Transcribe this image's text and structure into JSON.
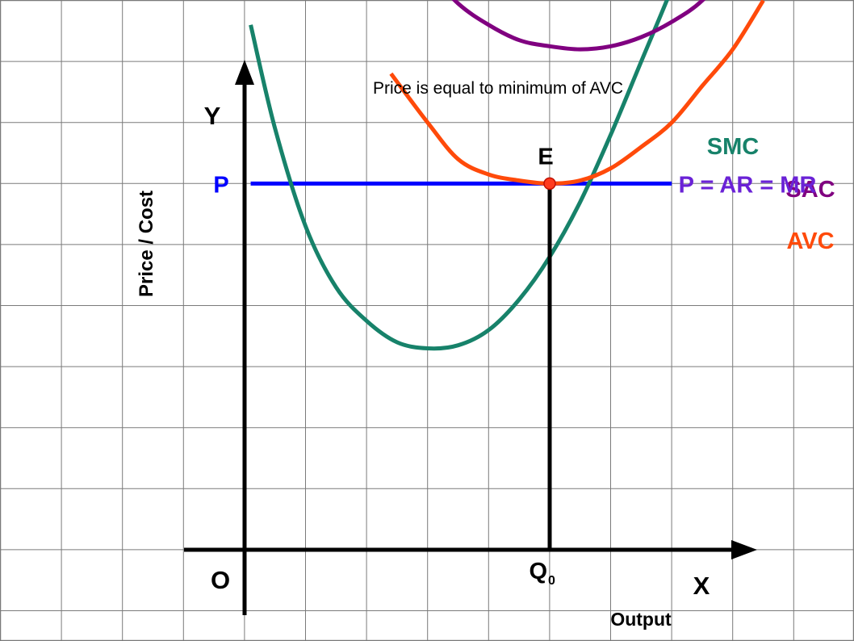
{
  "chart_data": {
    "type": "line",
    "title": "Price is equal to minimum of AVC",
    "ylabel": "Price / Cost",
    "xlabel": "Output",
    "axis_y_name": "Y",
    "axis_x_name": "X",
    "origin_label": "O",
    "grid": true,
    "colors": {
      "grid": "#7a7a7a",
      "axis": "#000000",
      "smc": "#17826a",
      "sac": "#800080",
      "avc": "#ff4a0a",
      "price_line": "#0000ff",
      "price_line_label": "#6a22d6",
      "equilibrium_fill": "#ff3b1f",
      "equilibrium_stroke": "#c01000"
    },
    "series": [
      {
        "name": "SMC",
        "points": [
          [
            0.1,
            8.6
          ],
          [
            0.5,
            6.9
          ],
          [
            1,
            5.3
          ],
          [
            1.5,
            4.3
          ],
          [
            2,
            3.75
          ],
          [
            2.5,
            3.4
          ],
          [
            3,
            3.3
          ],
          [
            3.5,
            3.35
          ],
          [
            4,
            3.6
          ],
          [
            4.5,
            4.1
          ],
          [
            5,
            4.8
          ],
          [
            5.5,
            5.7
          ],
          [
            6,
            6.8
          ],
          [
            6.5,
            8.0
          ],
          [
            7,
            9.2
          ],
          [
            7.5,
            10.5
          ],
          [
            8,
            11.8
          ]
        ]
      },
      {
        "name": "SAC",
        "points": [
          [
            2.4,
            10.2
          ],
          [
            3,
            9.5
          ],
          [
            3.5,
            8.95
          ],
          [
            4,
            8.6
          ],
          [
            4.5,
            8.35
          ],
          [
            5,
            8.25
          ],
          [
            5.5,
            8.2
          ],
          [
            6,
            8.25
          ],
          [
            6.5,
            8.4
          ],
          [
            7,
            8.65
          ],
          [
            7.5,
            9.0
          ],
          [
            8,
            9.6
          ],
          [
            8.6,
            10.4
          ]
        ]
      },
      {
        "name": "AVC",
        "points": [
          [
            2.4,
            7.8
          ],
          [
            3,
            7.0
          ],
          [
            3.5,
            6.4
          ],
          [
            4,
            6.15
          ],
          [
            4.5,
            6.05
          ],
          [
            5,
            6.0
          ],
          [
            5.5,
            6.05
          ],
          [
            6,
            6.25
          ],
          [
            6.5,
            6.6
          ],
          [
            7,
            7.0
          ],
          [
            7.5,
            7.6
          ],
          [
            8,
            8.2
          ],
          [
            8.5,
            9.0
          ]
        ]
      }
    ],
    "price_line": {
      "label": "P = AR = MR",
      "y": 6.0,
      "x_from": 0.1,
      "x_to": 7.0
    },
    "equilibrium": {
      "label": "E",
      "x": 5.0,
      "y": 6.0
    },
    "tick_labels": {
      "price": "P",
      "quantity_main": "Q",
      "quantity_sub": "0"
    }
  }
}
